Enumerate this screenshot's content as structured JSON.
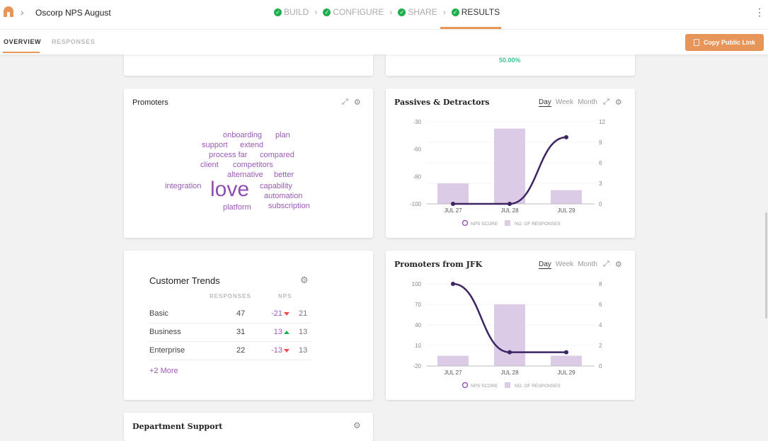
{
  "header": {
    "breadcrumb": "Oscorp NPS August",
    "steps": [
      {
        "label": "BUILD",
        "done": true
      },
      {
        "label": "CONFIGURE",
        "done": true
      },
      {
        "label": "SHARE",
        "done": true
      },
      {
        "label": "RESULTS",
        "done": true,
        "active": true
      }
    ],
    "menu_icon": "kebab-icon"
  },
  "tabs": [
    {
      "label": "OVERVIEW",
      "active": true
    },
    {
      "label": "RESPONSES"
    }
  ],
  "copy_button": "Copy Public Link",
  "top_card": {
    "value": "50.00%"
  },
  "promoters": {
    "title": "Promoters",
    "words": [
      "onboarding",
      "plan",
      "support",
      "extend",
      "process far",
      "compared",
      "competitors",
      "client",
      "better",
      "alternative",
      "integration",
      "capability",
      "love",
      "automation",
      "subscription",
      "platform"
    ]
  },
  "periods": [
    "Day",
    "Week",
    "Month"
  ],
  "customer_trends": {
    "title": "Customer Trends",
    "headers": [
      "RESPONSES",
      "NPS"
    ],
    "rows": [
      {
        "name": "Basic",
        "responses": "47",
        "nps": "-21",
        "trend": "down",
        "prev": "21"
      },
      {
        "name": "Business",
        "responses": "31",
        "nps": "13",
        "trend": "up",
        "prev": "13"
      },
      {
        "name": "Enterprise",
        "responses": "22",
        "nps": "-13",
        "trend": "down",
        "prev": "13"
      }
    ],
    "more": "+2 More"
  },
  "department_support": {
    "title": "Department Support"
  },
  "colors": {
    "accent": "#e8955a",
    "line": "#3d2463",
    "bar": "#dccbe6",
    "word": "#9b59b6",
    "positive": "#3cc390"
  },
  "chart_data": [
    {
      "type": "bar+line",
      "title": "Passives & Detractors",
      "categories": [
        "JUL 27",
        "JUL 28",
        "JUL 29"
      ],
      "left_ticks": [
        -100,
        -80,
        -60,
        -30
      ],
      "right_ticks": [
        0,
        3,
        6,
        9,
        12
      ],
      "series": [
        {
          "name": "NPS SCORE",
          "type": "line",
          "axis": "left",
          "values": [
            -100,
            -100,
            -47
          ]
        },
        {
          "name": "NO. OF RESPONSES",
          "type": "bar",
          "axis": "right",
          "values": [
            3,
            11,
            2
          ]
        }
      ],
      "legend": "bottom"
    },
    {
      "type": "bar+line",
      "title": "Promoters from JFK",
      "categories": [
        "JUL 27",
        "JUL 28",
        "JUL 29"
      ],
      "left_ticks": [
        -20,
        10,
        40,
        70,
        100
      ],
      "right_ticks": [
        0,
        2,
        4,
        6,
        8
      ],
      "series": [
        {
          "name": "NPS SCORE",
          "type": "line",
          "axis": "left",
          "values": [
            100,
            0,
            0
          ]
        },
        {
          "name": "NO. OF RESPONSES",
          "type": "bar",
          "axis": "right",
          "values": [
            1,
            6,
            1
          ]
        }
      ],
      "legend": "bottom"
    }
  ]
}
